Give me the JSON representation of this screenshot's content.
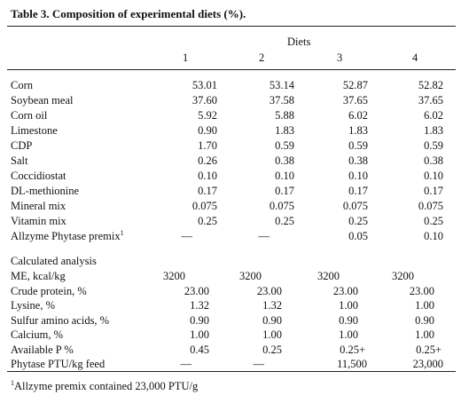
{
  "table": {
    "title": "Table 3. Composition of experimental diets (%).",
    "group_header": "Diets",
    "columns": [
      "1",
      "2",
      "3",
      "4"
    ],
    "ingredients": [
      {
        "label": "Corn",
        "values": [
          "53.01",
          "53.14",
          "52.87",
          "52.82"
        ]
      },
      {
        "label": "Soybean meal",
        "values": [
          "37.60",
          "37.58",
          "37.65",
          "37.65"
        ]
      },
      {
        "label": "Corn oil",
        "values": [
          "5.92",
          "5.88",
          "6.02",
          "6.02"
        ]
      },
      {
        "label": "Limestone",
        "values": [
          "0.90",
          "1.83",
          "1.83",
          "1.83"
        ]
      },
      {
        "label": "CDP",
        "values": [
          "1.70",
          "0.59",
          "0.59",
          "0.59"
        ]
      },
      {
        "label": "Salt",
        "values": [
          "0.26",
          "0.38",
          "0.38",
          "0.38"
        ]
      },
      {
        "label": "Coccidiostat",
        "values": [
          "0.10",
          "0.10",
          "0.10",
          "0.10"
        ]
      },
      {
        "label": "DL-methionine",
        "values": [
          "0.17",
          "0.17",
          "0.17",
          "0.17"
        ]
      },
      {
        "label": "Mineral mix",
        "values": [
          "0.075",
          "0.075",
          "0.075",
          "0.075"
        ]
      },
      {
        "label": "Vitamin mix",
        "values": [
          "0.25",
          "0.25",
          "0.25",
          "0.25"
        ]
      },
      {
        "label": "Allzyme Phytase premix",
        "sup": "1",
        "values": [
          "—",
          "—",
          "0.05",
          "0.10"
        ]
      }
    ],
    "calculated_header": "Calculated analysis",
    "analysis": [
      {
        "label": "ME, kcal/kg",
        "values": [
          "3200",
          "3200",
          "3200",
          "3200"
        ]
      },
      {
        "label": "Crude protein, %",
        "values": [
          "23.00",
          "23.00",
          "23.00",
          "23.00"
        ]
      },
      {
        "label": "Lysine, %",
        "values": [
          "1.32",
          "1.32",
          "1.00",
          "1.00"
        ]
      },
      {
        "label": "Sulfur amino acids, %",
        "values": [
          "0.90",
          "0.90",
          "0.90",
          "0.90"
        ]
      },
      {
        "label": "Calcium, %",
        "values": [
          "1.00",
          "1.00",
          "1.00",
          "1.00"
        ]
      },
      {
        "label": "Available P %",
        "values": [
          "0.45",
          "0.25",
          "0.25+",
          "0.25+"
        ]
      },
      {
        "label": "Phytase PTU/kg feed",
        "values": [
          "—",
          "—",
          "11,500",
          "23,000"
        ]
      }
    ],
    "footnote": {
      "mark": "1",
      "text": "Allzyme premix contained 23,000 PTU/g"
    }
  }
}
